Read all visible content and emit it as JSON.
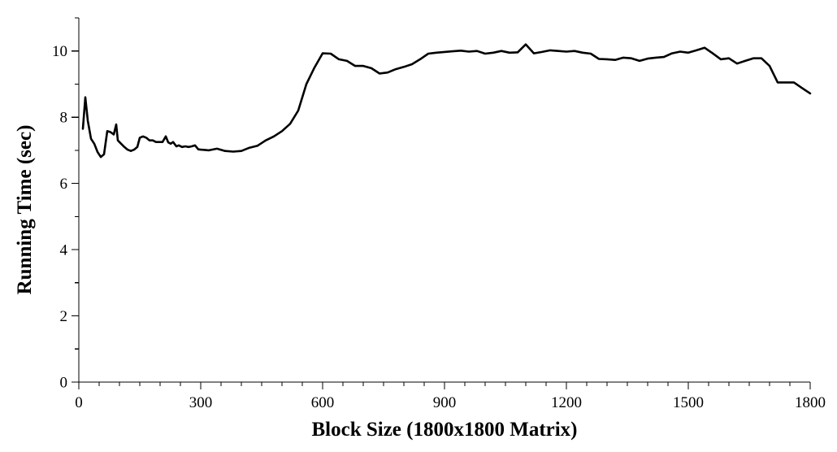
{
  "chart_data": {
    "type": "line",
    "title": "",
    "xlabel": "Block Size (1800x1800 Matrix)",
    "ylabel": "Running Time (sec)",
    "xlim": [
      0,
      1800
    ],
    "ylim": [
      0,
      11
    ],
    "x_ticks": [
      0,
      300,
      600,
      900,
      1200,
      1500,
      1800
    ],
    "y_ticks": [
      0,
      2,
      4,
      6,
      8,
      10
    ],
    "grid": false,
    "legend": "none",
    "line_color": "#000000",
    "series": [
      {
        "x": [
          10,
          16,
          22,
          30,
          38,
          46,
          54,
          62,
          70,
          78,
          86,
          92,
          96,
          104,
          112,
          120,
          128,
          136,
          144,
          150,
          158,
          166,
          174,
          182,
          190,
          198,
          206,
          214,
          220,
          226,
          232,
          240,
          246,
          254,
          262,
          270,
          278,
          286,
          294,
          300,
          320,
          340,
          360,
          380,
          400,
          420,
          440,
          460,
          480,
          500,
          520,
          540,
          560,
          580,
          600,
          620,
          640,
          660,
          680,
          700,
          720,
          740,
          760,
          780,
          800,
          820,
          840,
          860,
          880,
          900,
          920,
          940,
          960,
          980,
          1000,
          1020,
          1040,
          1060,
          1080,
          1100,
          1120,
          1140,
          1160,
          1180,
          1200,
          1220,
          1240,
          1260,
          1280,
          1300,
          1320,
          1340,
          1360,
          1380,
          1400,
          1420,
          1440,
          1460,
          1480,
          1500,
          1520,
          1540,
          1560,
          1580,
          1600,
          1620,
          1640,
          1660,
          1680,
          1700,
          1720,
          1740,
          1760,
          1780,
          1800
        ],
        "values": [
          7.65,
          8.6,
          7.9,
          7.35,
          7.2,
          6.95,
          6.8,
          6.88,
          7.58,
          7.55,
          7.48,
          7.78,
          7.3,
          7.2,
          7.1,
          7.02,
          6.98,
          7.02,
          7.1,
          7.38,
          7.42,
          7.38,
          7.3,
          7.3,
          7.25,
          7.25,
          7.25,
          7.42,
          7.24,
          7.2,
          7.25,
          7.12,
          7.15,
          7.1,
          7.12,
          7.1,
          7.12,
          7.15,
          7.03,
          7.02,
          7.0,
          7.05,
          6.98,
          6.96,
          6.98,
          7.08,
          7.14,
          7.3,
          7.42,
          7.58,
          7.8,
          8.2,
          9.0,
          9.5,
          9.93,
          9.92,
          9.75,
          9.7,
          9.55,
          9.55,
          9.48,
          9.32,
          9.35,
          9.45,
          9.52,
          9.6,
          9.75,
          9.92,
          9.95,
          9.97,
          9.99,
          10.01,
          9.98,
          10.0,
          9.92,
          9.95,
          10.0,
          9.95,
          9.96,
          10.2,
          9.93,
          9.97,
          10.02,
          10.0,
          9.98,
          10.0,
          9.95,
          9.92,
          9.76,
          9.75,
          9.73,
          9.8,
          9.78,
          9.7,
          9.77,
          9.8,
          9.82,
          9.93,
          9.98,
          9.95,
          10.02,
          10.1,
          9.93,
          9.75,
          9.78,
          9.62,
          9.7,
          9.78,
          9.78,
          9.55,
          9.05,
          9.05,
          9.05,
          8.88,
          8.72
        ]
      }
    ]
  }
}
